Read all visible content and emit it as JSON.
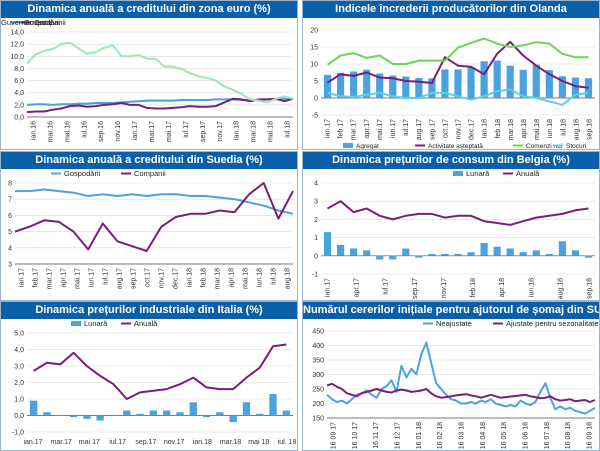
{
  "colors": {
    "title_bg": "#0b5fa8",
    "title_text": "#ffffff",
    "blue": "#4aa3df",
    "purple": "#7b1e7a",
    "green_light": "#9ee6b3",
    "green": "#6fd35a",
    "cyan": "#5ad0e6",
    "grid": "#d9d9d9",
    "axis": "#555555"
  },
  "chart_data": [
    {
      "id": "euro",
      "type": "line",
      "title": "Dinamica anuală a creditului din zona euro (%)",
      "legend": [
        "Gospodării",
        "Companii",
        "Guvernamental"
      ],
      "ylim": [
        0,
        14
      ],
      "yticks": [
        0.0,
        2.0,
        4.0,
        6.0,
        8.0,
        10.0,
        12.0,
        14.0
      ],
      "ytick_labels": [
        "0,0",
        "2,0",
        "4,0",
        "6,0",
        "8,0",
        "10,0",
        "12,0",
        "14,0"
      ],
      "categories": [
        "ian.16",
        "feb.16",
        "mar.16",
        "apr.16",
        "mai.16",
        "iun.16",
        "iul.16",
        "aug.16",
        "sep.16",
        "oct.16",
        "nov.16",
        "dec.16",
        "ian.17",
        "feb.17",
        "mar.17",
        "apr.17",
        "mai.17",
        "iun.17",
        "iul.17",
        "aug.17",
        "sep.17",
        "oct.17",
        "nov.17",
        "dec.17",
        "ian.18",
        "feb.18",
        "mar.18",
        "apr.18",
        "mai.18",
        "iun.18",
        "iul.18",
        "aug.18"
      ],
      "xtick_labels": [
        "ian.16",
        "mar.16",
        "mai.16",
        "iul.16",
        "sep.16",
        "nov.16",
        "ian.17",
        "mar.17",
        "mai.17",
        "iul.17",
        "sep.17",
        "nov.17",
        "ian.18",
        "mar.18",
        "mai.18",
        "iul.18"
      ],
      "series": [
        {
          "name": "Gospodării",
          "kind": "line",
          "color": "#4aa3df",
          "values": [
            2.0,
            2.1,
            2.1,
            2.0,
            2.1,
            2.1,
            2.2,
            2.2,
            2.3,
            2.3,
            2.3,
            2.4,
            2.5,
            2.6,
            2.7,
            2.7,
            2.7,
            2.7,
            2.8,
            2.8,
            2.8,
            2.8,
            2.9,
            2.9,
            2.9,
            2.8,
            2.8,
            2.8,
            2.9,
            2.9,
            3.0,
            3.0
          ]
        },
        {
          "name": "Companii",
          "kind": "line",
          "color": "#7b1e7a",
          "values": [
            0.8,
            0.9,
            0.9,
            1.2,
            1.4,
            1.8,
            1.9,
            1.7,
            1.8,
            2.0,
            2.1,
            2.3,
            2.0,
            2.0,
            1.5,
            1.4,
            1.4,
            1.5,
            1.6,
            1.8,
            1.7,
            1.7,
            1.8,
            2.4,
            3.0,
            2.9,
            2.6,
            2.9,
            2.9,
            3.0,
            2.6,
            3.0
          ]
        },
        {
          "name": "Guvernamental",
          "kind": "line",
          "color": "#9ee6b3",
          "values": [
            8.8,
            10.3,
            10.9,
            11.2,
            12.0,
            12.2,
            11.3,
            10.4,
            10.7,
            11.4,
            11.8,
            10.0,
            10.0,
            10.2,
            9.6,
            9.6,
            8.3,
            8.3,
            7.9,
            7.2,
            6.7,
            6.4,
            6.0,
            5.0,
            4.5,
            3.8,
            2.9,
            2.7,
            2.4,
            3.0,
            3.4,
            3.0
          ]
        }
      ]
    },
    {
      "id": "olanda",
      "type": "bar+line",
      "title": "Indicele încrederii producătorilor din Olanda",
      "legend": [
        "Agregat",
        "Activitate așteptată",
        "Comenzi noi",
        "Stocuri"
      ],
      "ylim": [
        -5,
        20
      ],
      "yticks": [
        -5,
        0,
        5,
        10,
        15,
        20
      ],
      "ytick_labels": [
        "-5",
        "0",
        "5",
        "10",
        "15",
        "20"
      ],
      "categories": [
        "ian.17",
        "feb.17",
        "mar.17",
        "apr.17",
        "mai.17",
        "iun.17",
        "iul.17",
        "aug.17",
        "sep.17",
        "oct.17",
        "nov.17",
        "dec.17",
        "ian.18",
        "feb.18",
        "mar.18",
        "apr.18",
        "mai.18",
        "iun.18",
        "iul.18",
        "aug.18",
        "sep.18"
      ],
      "xtick_labels": [
        "ian.17",
        "feb.17",
        "mar.17",
        "apr.17",
        "mai.17",
        "iun.17",
        "iul.17",
        "aug.17",
        "sep.17",
        "oct.17",
        "nov.17",
        "dec.17",
        "ian.18",
        "feb.18",
        "mar.18",
        "apr.18",
        "mai.18",
        "iun.18",
        "iul.18",
        "aug.18",
        "sep.18"
      ],
      "series": [
        {
          "name": "Agregat",
          "kind": "bar",
          "color": "#4aa3df",
          "values": [
            6.8,
            7.4,
            7.8,
            8.3,
            7.2,
            6.6,
            6.3,
            5.9,
            5.8,
            8.4,
            8.4,
            9.0,
            10.8,
            11.0,
            9.5,
            8.3,
            9.8,
            8.2,
            6.4,
            6.0,
            5.8
          ]
        },
        {
          "name": "Activitate așteptată",
          "kind": "line",
          "color": "#7b1e7a",
          "values": [
            4.5,
            7.0,
            6.5,
            7.5,
            6.0,
            5.8,
            5.0,
            4.8,
            4.4,
            12.0,
            9.5,
            9.2,
            7.0,
            13.0,
            16.5,
            12.5,
            9.5,
            7.0,
            5.0,
            3.5,
            3.0
          ]
        },
        {
          "name": "Comenzi noi",
          "kind": "line",
          "color": "#6fd35a",
          "values": [
            9.8,
            12.5,
            13.2,
            11.8,
            12.5,
            10.0,
            10.0,
            11.0,
            11.0,
            11.0,
            14.8,
            16.2,
            17.5,
            16.0,
            15.0,
            15.5,
            16.4,
            16.0,
            13.0,
            12.0,
            12.0
          ]
        },
        {
          "name": "Stocuri",
          "kind": "line",
          "color": "#5ad0e6",
          "values": [
            1.5,
            0.5,
            0.3,
            1.0,
            1.5,
            0.5,
            0.0,
            0.0,
            1.5,
            1.5,
            0.5,
            -0.5,
            0.5,
            2.0,
            2.5,
            0.5,
            0.0,
            -1.0,
            -2.0,
            1.0,
            1.5
          ]
        }
      ]
    },
    {
      "id": "suedia",
      "type": "line",
      "title": "Dinamica anuală a creditului din Suedia (%)",
      "legend": [
        "Gospodării",
        "Companii"
      ],
      "ylim": [
        3,
        8
      ],
      "yticks": [
        3,
        4,
        5,
        6,
        7,
        8
      ],
      "ytick_labels": [
        "3",
        "4",
        "5",
        "6",
        "7",
        "8"
      ],
      "categories": [
        "ian.17",
        "feb.17",
        "mar.17",
        "apr.17",
        "mai.17",
        "iun.17",
        "iul.17",
        "aug.17",
        "sep.17",
        "oct.17",
        "nov.17",
        "dec.17",
        "ian.18",
        "feb.18",
        "mar.18",
        "apr.18",
        "mai.18",
        "iun.18",
        "iul.18",
        "aug.18"
      ],
      "xtick_labels": [
        "ian.17",
        "feb.17",
        "mar.17",
        "apr.17",
        "mai.17",
        "iun.17",
        "iul.17",
        "aug.17",
        "sep.17",
        "oct.17",
        "nov.17",
        "dec.17",
        "ian.18",
        "feb.18",
        "mar.18",
        "apr.18",
        "mai.18",
        "iun.18",
        "iul.18",
        "aug.18"
      ],
      "series": [
        {
          "name": "Gospodării",
          "kind": "line",
          "color": "#4aa3df",
          "values": [
            7.5,
            7.5,
            7.6,
            7.5,
            7.4,
            7.2,
            7.3,
            7.2,
            7.3,
            7.2,
            7.3,
            7.3,
            7.2,
            7.2,
            7.1,
            7.0,
            6.8,
            6.6,
            6.3,
            6.1
          ]
        },
        {
          "name": "Companii",
          "kind": "line",
          "color": "#7b1e7a",
          "values": [
            5.0,
            5.3,
            5.7,
            5.6,
            5.0,
            3.9,
            5.5,
            4.4,
            4.1,
            3.8,
            5.3,
            5.9,
            6.1,
            6.1,
            6.3,
            6.2,
            7.3,
            8.0,
            5.8,
            7.5
          ]
        }
      ]
    },
    {
      "id": "belgia",
      "type": "bar+line",
      "title": "Dinamica prețurilor de consum din Belgia (%)",
      "legend": [
        "Lunară",
        "Anuală"
      ],
      "ylim": [
        -1,
        4
      ],
      "yticks": [
        -1,
        0,
        1,
        2,
        3,
        4
      ],
      "ytick_labels": [
        "-1",
        "0",
        "1",
        "2",
        "3",
        "4"
      ],
      "categories": [
        "ian.17",
        "feb.17",
        "mar.17",
        "apr.17",
        "mai.17",
        "iun.17",
        "iul.17",
        "aug.17",
        "sep.17",
        "oct.17",
        "nov.17",
        "dec.17",
        "ian.18",
        "feb.18",
        "mar.18",
        "apr.18",
        "mai.18",
        "iun.18",
        "iul.18",
        "aug.18",
        "sep.18"
      ],
      "xtick_labels": [
        "ian.17",
        "apr.17",
        "iul.17",
        "sep.17",
        "nov.17",
        "feb.18",
        "apr.18",
        "iun.18",
        "aug.18",
        "sep.18"
      ],
      "series": [
        {
          "name": "Lunară",
          "kind": "bar",
          "color": "#4aa3df",
          "values": [
            1.3,
            0.6,
            0.4,
            0.3,
            -0.2,
            -0.2,
            0.4,
            -0.1,
            0.1,
            0.1,
            0.1,
            0.2,
            0.7,
            0.5,
            0.4,
            0.2,
            0.3,
            0.1,
            0.8,
            0.3,
            -0.1
          ]
        },
        {
          "name": "Anuală",
          "kind": "line",
          "color": "#7b1e7a",
          "values": [
            2.6,
            3.0,
            2.4,
            2.6,
            2.2,
            2.0,
            2.2,
            2.3,
            2.3,
            2.1,
            2.2,
            2.2,
            1.9,
            1.8,
            1.7,
            1.9,
            2.1,
            2.2,
            2.3,
            2.5,
            2.6
          ]
        }
      ]
    },
    {
      "id": "italia",
      "type": "bar+line",
      "title": "Dinamica prețurilor industriale din Italia (%)",
      "legend": [
        "Lunară",
        "Anuală"
      ],
      "ylim": [
        -1,
        5
      ],
      "yticks": [
        -1.0,
        0.0,
        1.0,
        2.0,
        3.0,
        4.0,
        5.0
      ],
      "ytick_labels": [
        "-1,0",
        "0,0",
        "1,0",
        "2,0",
        "3,0",
        "4,0",
        "5,0"
      ],
      "categories": [
        "ian.17",
        "feb.17",
        "mar.17",
        "apr.17",
        "mai.17",
        "iun.17",
        "iul.17",
        "aug.17",
        "sep.17",
        "oct.17",
        "nov.17",
        "dec.17",
        "ian.18",
        "feb.18",
        "mar.18",
        "apr.18",
        "mai.18",
        "iun.18",
        "iul.18",
        "aug.18"
      ],
      "xtick_labels": [
        "ian.17",
        "mar.17",
        "mai 17",
        "iul.17",
        "sep.17",
        "nov.17",
        "ian.18",
        "mar.18",
        "mai 18",
        "iul. 18"
      ],
      "series": [
        {
          "name": "Lunară",
          "kind": "bar",
          "color": "#4aa3df",
          "values": [
            0.9,
            0.2,
            0.0,
            -0.1,
            -0.2,
            -0.3,
            0.0,
            0.3,
            0.1,
            0.3,
            0.3,
            0.2,
            0.8,
            -0.1,
            0.2,
            -0.4,
            0.8,
            0.1,
            1.3,
            0.3
          ]
        },
        {
          "name": "Anuală",
          "kind": "line",
          "color": "#7b1e7a",
          "values": [
            2.7,
            3.2,
            3.1,
            3.8,
            3.0,
            2.4,
            1.9,
            1.0,
            1.4,
            1.5,
            1.6,
            1.9,
            2.3,
            1.7,
            1.6,
            1.6,
            2.3,
            2.9,
            4.2,
            4.3
          ]
        }
      ]
    },
    {
      "id": "sua",
      "type": "line",
      "title": "Numărul cererilor inițiale pentru ajutorul de șomaj din SUA",
      "legend": [
        "Neajustate",
        "Ajustate pentru sezonalitate"
      ],
      "ylim": [
        150,
        450
      ],
      "yticks": [
        150,
        200,
        250,
        300,
        350,
        400,
        450
      ],
      "ytick_labels": [
        "150",
        "200",
        "250",
        "300",
        "350",
        "400",
        "450"
      ],
      "xtick_labels": [
        "16 09 17",
        "16 10 17",
        "16 11 17",
        "16 12 17",
        "16 01 18",
        "16 02 18",
        "16 03 18",
        "16 04 18",
        "16 05 18",
        "16 06 18",
        "16 07 18",
        "16 08 18",
        "16 09 18"
      ],
      "series": [
        {
          "name": "Neajustate",
          "kind": "line",
          "color": "#4aa3df",
          "values": [
            230,
            215,
            205,
            210,
            200,
            215,
            230,
            235,
            245,
            230,
            220,
            250,
            260,
            280,
            240,
            330,
            290,
            320,
            300,
            370,
            410,
            340,
            270,
            250,
            230,
            215,
            210,
            200,
            200,
            205,
            200,
            210,
            205,
            215,
            200,
            195,
            190,
            195,
            190,
            210,
            200,
            195,
            205,
            240,
            270,
            220,
            180,
            190,
            180,
            185,
            175,
            170,
            165,
            175,
            185
          ]
        },
        {
          "name": "Ajustate pentru sezonalitate",
          "kind": "line",
          "color": "#7b1e7a",
          "values": [
            262,
            268,
            258,
            250,
            235,
            230,
            225,
            235,
            240,
            245,
            250,
            245,
            240,
            238,
            245,
            248,
            245,
            240,
            242,
            245,
            250,
            235,
            225,
            220,
            222,
            225,
            228,
            230,
            232,
            228,
            225,
            220,
            225,
            230,
            225,
            220,
            222,
            224,
            226,
            228,
            230,
            225,
            222,
            218,
            220,
            225,
            215,
            210,
            212,
            215,
            208,
            210,
            212,
            205,
            212
          ]
        }
      ]
    }
  ]
}
